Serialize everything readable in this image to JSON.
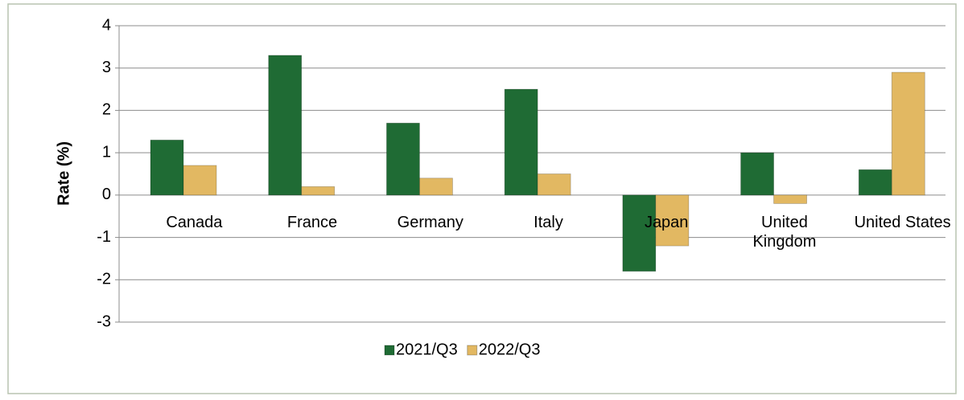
{
  "chart_data": {
    "type": "bar",
    "y_label": "Rate (%)",
    "categories": [
      "Canada",
      "France",
      "Germany",
      "Italy",
      "Japan",
      "United Kingdom",
      "United States"
    ],
    "series": [
      {
        "name": "2021/Q3",
        "color": "#1f6b34",
        "values": [
          1.3,
          3.3,
          1.7,
          2.5,
          -1.8,
          1.0,
          0.6
        ]
      },
      {
        "name": "2022/Q3",
        "color": "#e2b862",
        "values": [
          0.7,
          0.2,
          0.4,
          0.5,
          -1.2,
          -0.2,
          2.9
        ]
      }
    ],
    "ylim": [
      -3,
      4
    ],
    "yticks": [
      -3,
      -2,
      -1,
      0,
      1,
      2,
      3,
      4
    ],
    "grid": true,
    "legend": "bottom"
  }
}
